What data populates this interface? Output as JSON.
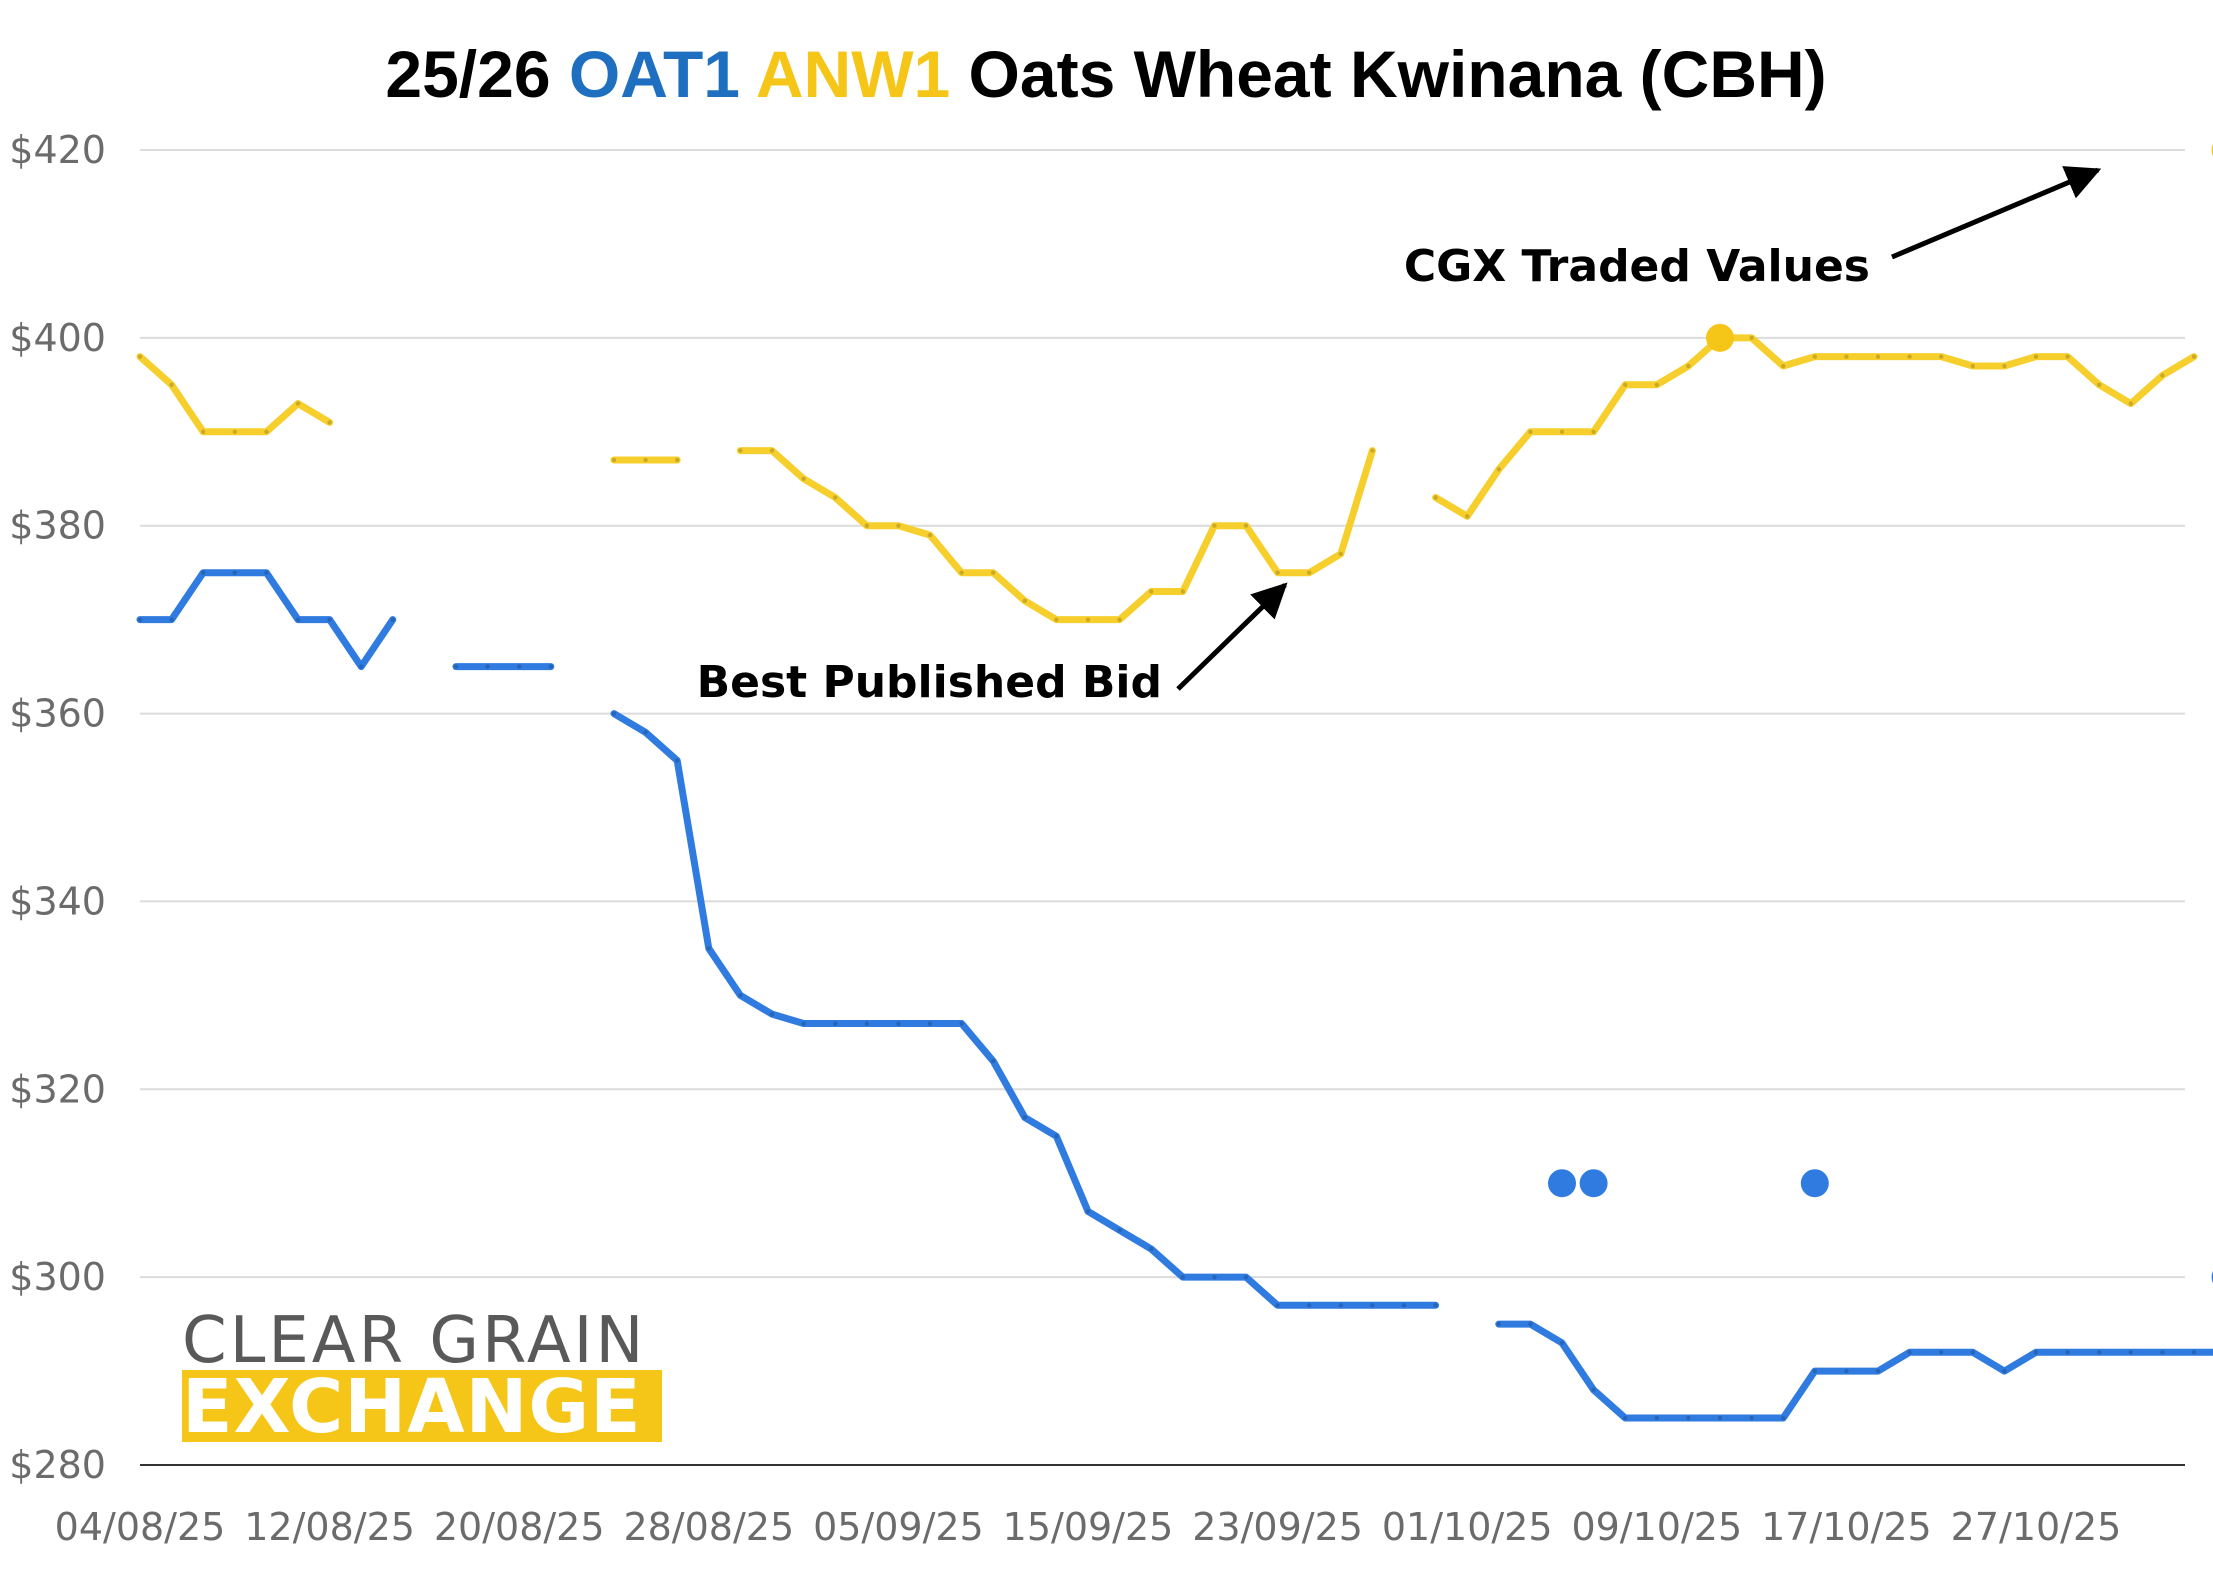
{
  "chart_data": {
    "type": "line",
    "title_parts": [
      {
        "text": "25/26 ",
        "color": "#000000"
      },
      {
        "text": "OAT1",
        "color": "#1f6fc0"
      },
      {
        "text": " ",
        "color": "#000000"
      },
      {
        "text": "ANW1",
        "color": "#f5c518"
      },
      {
        "text": " Oats Wheat Kwinana (CBH)",
        "color": "#000000"
      }
    ],
    "x_tick_labels": [
      "04/08/25",
      "12/08/25",
      "20/08/25",
      "28/08/25",
      "05/09/25",
      "15/09/25",
      "23/09/25",
      "01/10/25",
      "09/10/25",
      "17/10/25",
      "27/10/25"
    ],
    "y_tick_labels": [
      "$420",
      "$400",
      "$380",
      "$360",
      "$340",
      "$320",
      "$300",
      "$280"
    ],
    "ylim": [
      280,
      420
    ],
    "y_ticks": [
      420,
      400,
      380,
      360,
      340,
      320,
      300,
      280
    ],
    "x_count": 65,
    "x_tick_positions": [
      0,
      6,
      12,
      18,
      24,
      30,
      36,
      42,
      48,
      54,
      60
    ],
    "grid": true,
    "series": [
      {
        "name": "OAT1",
        "color": "#2f7be0",
        "style": "line",
        "segments": [
          [
            [
              0,
              370
            ],
            [
              1,
              370
            ],
            [
              2,
              375
            ],
            [
              3,
              375
            ],
            [
              4,
              375
            ],
            [
              5,
              370
            ],
            [
              6,
              370
            ],
            [
              7,
              365
            ],
            [
              8,
              370
            ]
          ],
          [
            [
              10,
              365
            ],
            [
              11,
              365
            ],
            [
              12,
              365
            ],
            [
              13,
              365
            ]
          ],
          [
            [
              15,
              360
            ],
            [
              16,
              358
            ],
            [
              17,
              355
            ],
            [
              18,
              335
            ],
            [
              19,
              330
            ],
            [
              20,
              328
            ],
            [
              21,
              327
            ],
            [
              22,
              327
            ],
            [
              23,
              327
            ],
            [
              24,
              327
            ],
            [
              25,
              327
            ],
            [
              26,
              327
            ],
            [
              27,
              323
            ],
            [
              28,
              317
            ],
            [
              29,
              315
            ],
            [
              30,
              307
            ],
            [
              31,
              305
            ],
            [
              32,
              303
            ],
            [
              33,
              300
            ],
            [
              34,
              300
            ],
            [
              35,
              300
            ],
            [
              36,
              297
            ],
            [
              37,
              297
            ],
            [
              38,
              297
            ],
            [
              39,
              297
            ],
            [
              40,
              297
            ],
            [
              41,
              297
            ]
          ],
          [
            [
              43,
              295
            ],
            [
              44,
              295
            ],
            [
              45,
              293
            ],
            [
              46,
              288
            ],
            [
              47,
              285
            ],
            [
              48,
              285
            ],
            [
              49,
              285
            ],
            [
              50,
              285
            ],
            [
              51,
              285
            ],
            [
              52,
              285
            ],
            [
              53,
              290
            ],
            [
              54,
              290
            ],
            [
              55,
              290
            ],
            [
              56,
              292
            ],
            [
              57,
              292
            ],
            [
              58,
              292
            ],
            [
              59,
              290
            ],
            [
              60,
              292
            ],
            [
              61,
              292
            ],
            [
              62,
              292
            ],
            [
              63,
              292
            ],
            [
              64,
              292
            ],
            [
              65,
              292
            ],
            [
              66,
              292
            ],
            [
              67,
              295
            ]
          ]
        ]
      },
      {
        "name": "ANW1",
        "color": "#f7cf2c",
        "style": "line",
        "segments": [
          [
            [
              0,
              398
            ],
            [
              1,
              395
            ],
            [
              2,
              390
            ],
            [
              3,
              390
            ],
            [
              4,
              390
            ],
            [
              5,
              393
            ],
            [
              6,
              391
            ]
          ],
          [
            [
              15,
              387
            ],
            [
              16,
              387
            ],
            [
              17,
              387
            ]
          ],
          [
            [
              19,
              388
            ],
            [
              20,
              388
            ],
            [
              21,
              385
            ],
            [
              22,
              383
            ],
            [
              23,
              380
            ],
            [
              24,
              380
            ],
            [
              25,
              379
            ],
            [
              26,
              375
            ],
            [
              27,
              375
            ],
            [
              28,
              372
            ],
            [
              29,
              370
            ],
            [
              30,
              370
            ],
            [
              31,
              370
            ],
            [
              32,
              373
            ],
            [
              33,
              373
            ],
            [
              34,
              380
            ],
            [
              35,
              380
            ],
            [
              36,
              375
            ],
            [
              37,
              375
            ],
            [
              38,
              377
            ],
            [
              39,
              388
            ]
          ],
          [
            [
              41,
              383
            ],
            [
              42,
              381
            ],
            [
              43,
              386
            ],
            [
              44,
              390
            ],
            [
              45,
              390
            ],
            [
              46,
              390
            ],
            [
              47,
              395
            ],
            [
              48,
              395
            ],
            [
              49,
              397
            ],
            [
              50,
              400
            ],
            [
              51,
              400
            ],
            [
              52,
              397
            ],
            [
              53,
              398
            ],
            [
              54,
              398
            ],
            [
              55,
              398
            ],
            [
              56,
              398
            ],
            [
              57,
              398
            ],
            [
              58,
              397
            ],
            [
              59,
              397
            ],
            [
              60,
              398
            ],
            [
              61,
              398
            ],
            [
              62,
              395
            ],
            [
              63,
              393
            ],
            [
              64,
              396
            ],
            [
              65,
              398
            ]
          ]
        ]
      },
      {
        "name": "OAT1 CGX Traded Values",
        "color": "#2f7be0",
        "style": "points",
        "points": [
          [
            45,
            310
          ],
          [
            46,
            310
          ],
          [
            53,
            310
          ],
          [
            66,
            300
          ]
        ]
      },
      {
        "name": "ANW1 CGX Traded Values",
        "color": "#f5c518",
        "style": "points",
        "points": [
          [
            50,
            400
          ],
          [
            66,
            420
          ]
        ]
      }
    ],
    "annotations": [
      {
        "text": "CGX Traded Values"
      },
      {
        "text": "Best Published Bid"
      }
    ]
  },
  "logo": {
    "line1": "CLEAR GRAIN",
    "line2": "EXCHANGE",
    "line1_color": "#595959",
    "line2_bg": "#f5c518"
  }
}
